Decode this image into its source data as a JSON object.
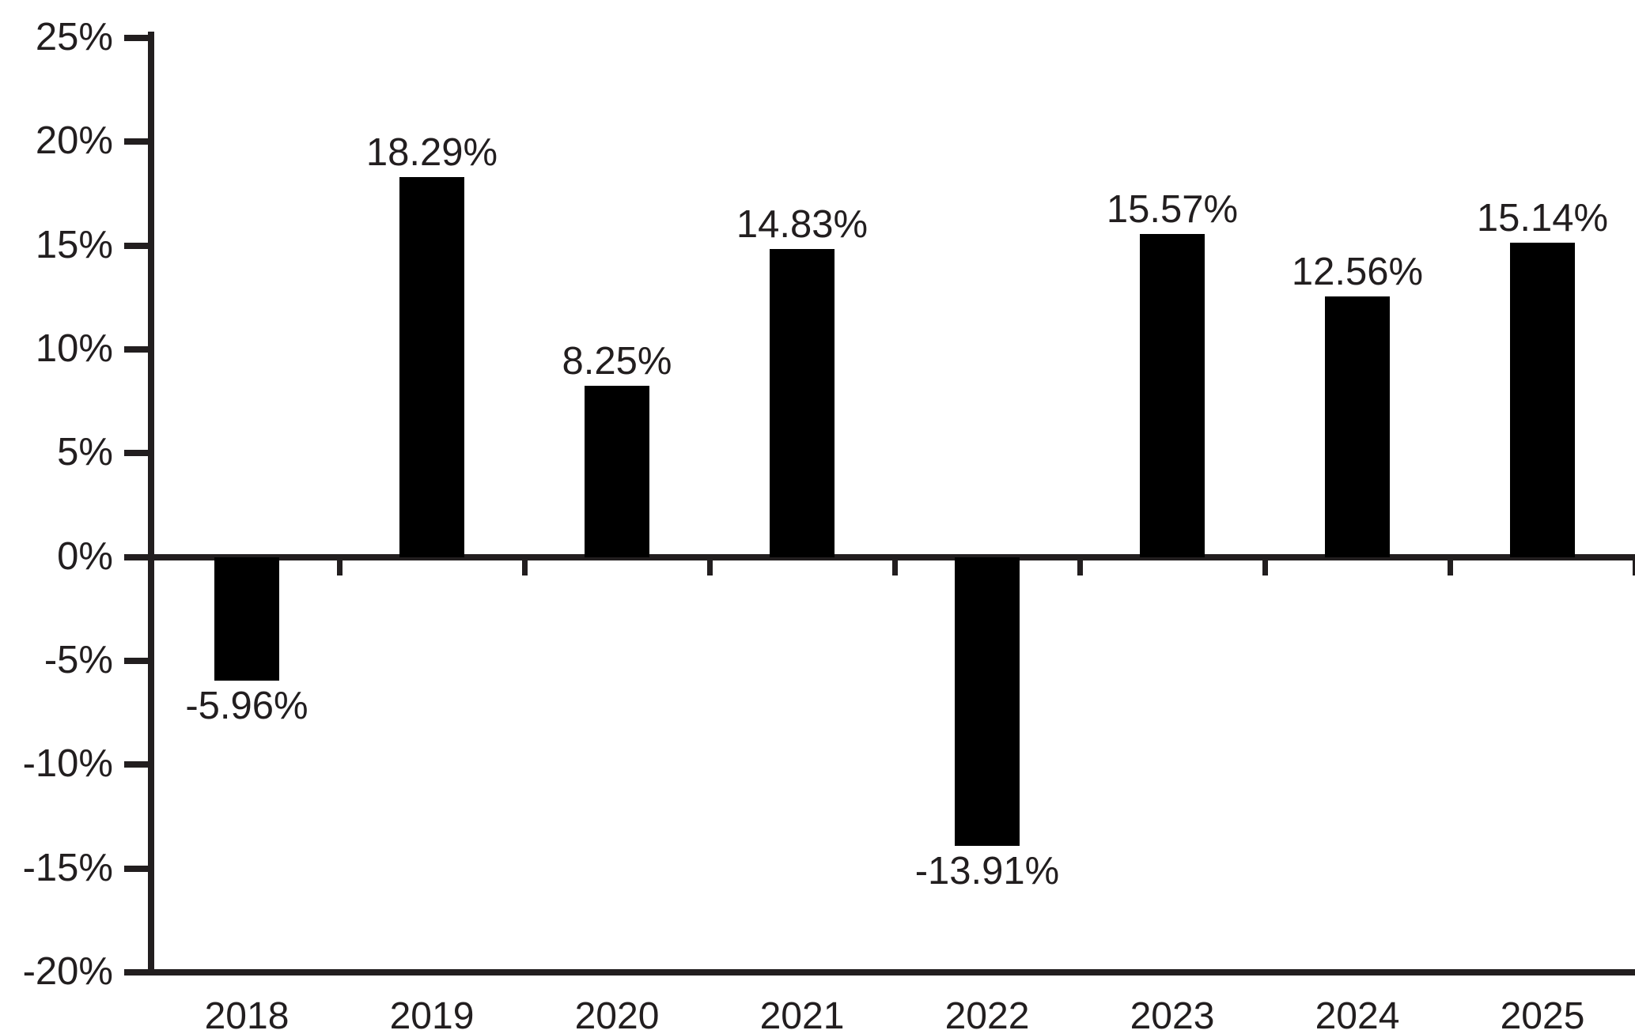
{
  "chart_data": {
    "type": "bar",
    "title": "",
    "xlabel": "",
    "ylabel": "",
    "categories": [
      "2018",
      "2019",
      "2020",
      "2021",
      "2022",
      "2023",
      "2024",
      "2025"
    ],
    "values": [
      -5.96,
      18.29,
      8.25,
      14.83,
      -13.91,
      15.57,
      12.56,
      15.14
    ],
    "data_labels": [
      "-5.96%",
      "18.29%",
      "8.25%",
      "14.83%",
      "-13.91%",
      "15.57%",
      "12.56%",
      "15.14%"
    ],
    "ylim": [
      -20,
      25
    ],
    "y_tick_step": 5,
    "y_tick_values": [
      25,
      20,
      15,
      10,
      5,
      0,
      -5,
      -10,
      -15,
      -20
    ],
    "y_tick_labels": [
      "25%",
      "20%",
      "15%",
      "10%",
      "5%",
      "0%",
      "-5%",
      "-10%",
      "-15%",
      "-20%"
    ],
    "grid": "off",
    "legend": "none",
    "bar_color": "#000000",
    "axis_color": "#221e1f",
    "text_color": "#221e1f",
    "background_color": "#ffffff"
  }
}
